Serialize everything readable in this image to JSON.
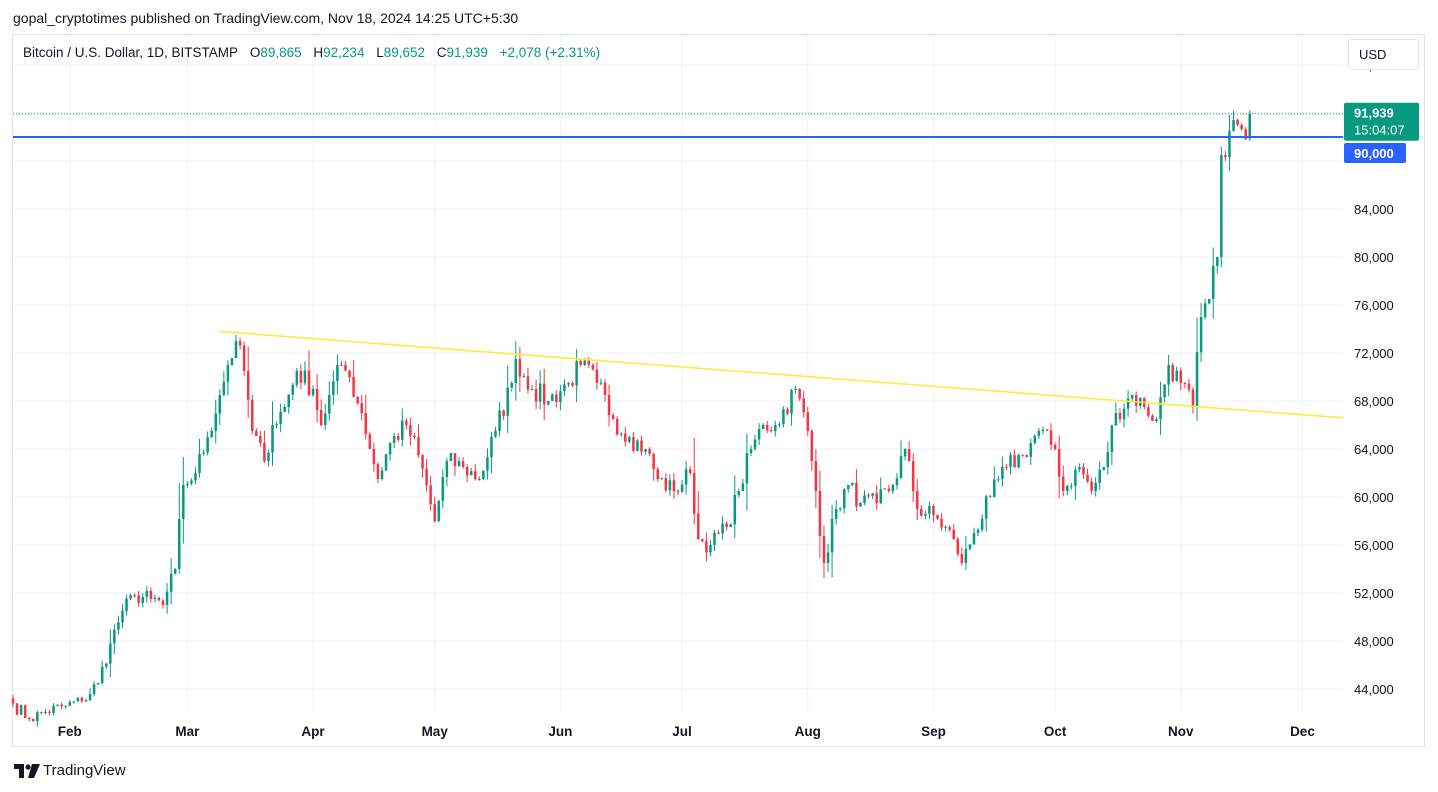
{
  "publisher_line": "gopal_cryptotimes published on TradingView.com, Nov 18, 2024 14:25 UTC+5:30",
  "legend": {
    "symbol": "Bitcoin / U.S. Dollar, 1D, BITSTAMP",
    "open_label": "O",
    "open": "89,865",
    "high_label": "H",
    "high": "92,234",
    "low_label": "L",
    "low": "89,652",
    "close_label": "C",
    "close": "91,939",
    "change": "+2,078 (+2.31%)"
  },
  "currency_button": "USD",
  "price_tag": {
    "price": "91,939",
    "countdown": "15:04:07",
    "color": "#089981"
  },
  "level_tag": {
    "price": "90,000",
    "color": "#2962ff"
  },
  "footer": {
    "logo_icon": "tradingview-logo-icon",
    "brand": "TradingView"
  },
  "colors": {
    "up": "#089981",
    "down": "#f23645",
    "trendline": "#ffeb3b",
    "level": "#2962ff",
    "grid": "#f0f3fa"
  },
  "chart_data": {
    "type": "candlestick",
    "title": "",
    "xlabel": "",
    "ylabel": "",
    "ylim": [
      42000,
      98500
    ],
    "x_range": [
      "2024-01-18",
      "2024-12-11"
    ],
    "grid": true,
    "y_ticks": [
      44000,
      48000,
      52000,
      56000,
      60000,
      64000,
      68000,
      72000,
      76000,
      80000,
      84000,
      96000
    ],
    "y_tick_labels": [
      "44,000",
      "48,000",
      "52,000",
      "56,000",
      "60,000",
      "64,000",
      "68,000",
      "72,000",
      "76,000",
      "80,000",
      "84,000",
      "96,000"
    ],
    "x_ticks": [
      {
        "date": "2024-02-01",
        "label": "Feb"
      },
      {
        "date": "2024-03-01",
        "label": "Mar"
      },
      {
        "date": "2024-04-01",
        "label": "Apr"
      },
      {
        "date": "2024-05-01",
        "label": "May"
      },
      {
        "date": "2024-06-01",
        "label": "Jun"
      },
      {
        "date": "2024-07-01",
        "label": "Jul"
      },
      {
        "date": "2024-08-01",
        "label": "Aug"
      },
      {
        "date": "2024-09-01",
        "label": "Sep"
      },
      {
        "date": "2024-10-01",
        "label": "Oct"
      },
      {
        "date": "2024-11-01",
        "label": "Nov"
      },
      {
        "date": "2024-12-01",
        "label": "Dec"
      }
    ],
    "close_series": [
      [
        "2024-01-18",
        42800
      ],
      [
        "2024-01-22",
        41500
      ],
      [
        "2024-01-26",
        42100
      ],
      [
        "2024-01-31",
        42600
      ],
      [
        "2024-02-04",
        43000
      ],
      [
        "2024-02-08",
        44500
      ],
      [
        "2024-02-11",
        47800
      ],
      [
        "2024-02-14",
        50500
      ],
      [
        "2024-02-17",
        51800
      ],
      [
        "2024-02-21",
        51500
      ],
      [
        "2024-02-24",
        51000
      ],
      [
        "2024-02-27",
        54000
      ],
      [
        "2024-02-29",
        61000
      ],
      [
        "2024-03-03",
        62000
      ],
      [
        "2024-03-06",
        65000
      ],
      [
        "2024-03-09",
        68500
      ],
      [
        "2024-03-11",
        71000
      ],
      [
        "2024-03-13",
        73000
      ],
      [
        "2024-03-15",
        70500
      ],
      [
        "2024-03-17",
        65500
      ],
      [
        "2024-03-20",
        63000
      ],
      [
        "2024-03-22",
        66000
      ],
      [
        "2024-03-25",
        67500
      ],
      [
        "2024-03-28",
        70500
      ],
      [
        "2024-04-01",
        69000
      ],
      [
        "2024-04-03",
        66000
      ],
      [
        "2024-04-05",
        68500
      ],
      [
        "2024-04-08",
        71000
      ],
      [
        "2024-04-10",
        70000
      ],
      [
        "2024-04-13",
        67000
      ],
      [
        "2024-04-17",
        61500
      ],
      [
        "2024-04-20",
        64500
      ],
      [
        "2024-04-24",
        66000
      ],
      [
        "2024-04-27",
        63500
      ],
      [
        "2024-05-01",
        58000
      ],
      [
        "2024-05-04",
        63000
      ],
      [
        "2024-05-08",
        62500
      ],
      [
        "2024-05-12",
        61500
      ],
      [
        "2024-05-16",
        65500
      ],
      [
        "2024-05-20",
        69500
      ],
      [
        "2024-05-21",
        71500
      ],
      [
        "2024-05-25",
        69000
      ],
      [
        "2024-05-29",
        68000
      ],
      [
        "2024-06-03",
        69500
      ],
      [
        "2024-06-06",
        71000
      ],
      [
        "2024-06-10",
        69500
      ],
      [
        "2024-06-14",
        66500
      ],
      [
        "2024-06-18",
        65000
      ],
      [
        "2024-06-22",
        64000
      ],
      [
        "2024-06-25",
        61500
      ],
      [
        "2024-06-29",
        60500
      ],
      [
        "2024-07-03",
        62000
      ],
      [
        "2024-07-05",
        56500
      ],
      [
        "2024-07-08",
        56000
      ],
      [
        "2024-07-12",
        57500
      ],
      [
        "2024-07-15",
        60500
      ],
      [
        "2024-07-18",
        64000
      ],
      [
        "2024-07-21",
        66000
      ],
      [
        "2024-07-24",
        66000
      ],
      [
        "2024-07-29",
        69000
      ],
      [
        "2024-08-01",
        65500
      ],
      [
        "2024-08-03",
        60500
      ],
      [
        "2024-08-05",
        54500
      ],
      [
        "2024-08-08",
        59000
      ],
      [
        "2024-08-11",
        61000
      ],
      [
        "2024-08-14",
        59500
      ],
      [
        "2024-08-18",
        59500
      ],
      [
        "2024-08-22",
        61000
      ],
      [
        "2024-08-25",
        64000
      ],
      [
        "2024-08-28",
        59000
      ],
      [
        "2024-09-01",
        58500
      ],
      [
        "2024-09-06",
        56500
      ],
      [
        "2024-09-08",
        54500
      ],
      [
        "2024-09-11",
        57000
      ],
      [
        "2024-09-15",
        60000
      ],
      [
        "2024-09-19",
        62500
      ],
      [
        "2024-09-23",
        63500
      ],
      [
        "2024-09-27",
        65500
      ],
      [
        "2024-10-01",
        64000
      ],
      [
        "2024-10-03",
        60500
      ],
      [
        "2024-10-07",
        62500
      ],
      [
        "2024-10-10",
        60500
      ],
      [
        "2024-10-13",
        62500
      ],
      [
        "2024-10-16",
        67000
      ],
      [
        "2024-10-20",
        68500
      ],
      [
        "2024-10-23",
        67500
      ],
      [
        "2024-10-26",
        66500
      ],
      [
        "2024-10-29",
        71000
      ],
      [
        "2024-11-01",
        69500
      ],
      [
        "2024-11-04",
        67500
      ],
      [
        "2024-11-06",
        75000
      ],
      [
        "2024-11-08",
        76500
      ],
      [
        "2024-11-10",
        80000
      ],
      [
        "2024-11-11",
        88500
      ],
      [
        "2024-11-13",
        90500
      ],
      [
        "2024-11-15",
        91000
      ],
      [
        "2024-11-17",
        89800
      ],
      [
        "2024-11-18",
        91939
      ]
    ],
    "last_bar": {
      "open": 89865,
      "high": 92234,
      "low": 89652,
      "close": 91939
    },
    "horizontal_level": 90000,
    "trendline": {
      "start": [
        "2024-03-09",
        73800
      ],
      "end": [
        "2024-12-11",
        66600
      ]
    }
  }
}
